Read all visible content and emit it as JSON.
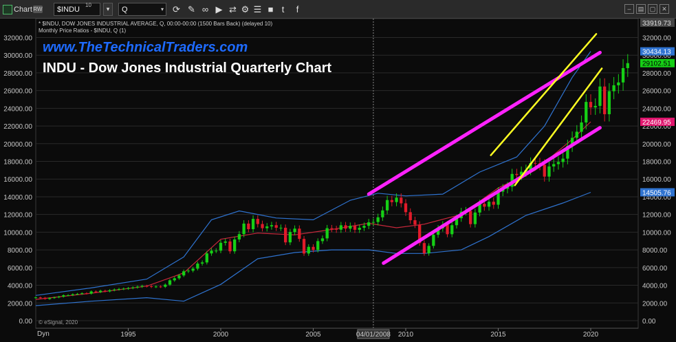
{
  "toolbar": {
    "chart_label": "Chart",
    "chart_badge": "RW",
    "symbol": "$INDU",
    "symbol_sup": "10",
    "interval": "Q",
    "icons": [
      "refresh-icon",
      "draw-icon",
      "link-icon",
      "play-icon",
      "sync-icon",
      "settings-icon",
      "menu-icon",
      "video-icon",
      "twitter-icon",
      "facebook-icon"
    ],
    "window_icons": [
      "minimize-icon",
      "tile-icon",
      "restore-icon",
      "close-icon"
    ]
  },
  "header": {
    "line1": "* $INDU, DOW JONES INDUSTRIAL AVERAGE, Q, 00:00-00:00 (1500 Bars Back) (delayed 10)",
    "line2": "Monthly Price Ratios - $INDU, Q (1)",
    "site": "www.TheTechnicalTraders.com",
    "title": "INDU - Dow Jones Industrial Quarterly Chart"
  },
  "footer": {
    "esignal": "© eSignal, 2020",
    "dyn_label": "Dyn",
    "crosshair_date": "04/01/2008"
  },
  "price_tags": {
    "top": "33919.73",
    "upper_band": "30434.13",
    "last": "29102.51",
    "mid_band": "22469.95",
    "lower_band": "14505.76"
  },
  "chart_data": {
    "type": "candlestick",
    "x_axis_labels": [
      "1995",
      "2000",
      "2005",
      "2010",
      "2015",
      "2020"
    ],
    "y_axis_labels": [
      "0.00",
      "2000.00",
      "4000.00",
      "6000.00",
      "8000.00",
      "10000.00",
      "12000.00",
      "14000.00",
      "16000.00",
      "18000.00",
      "20000.00",
      "22000.00",
      "24000.00",
      "26000.00",
      "28000.00",
      "30000.00",
      "32000.00"
    ],
    "ylim": [
      0,
      33919.73
    ],
    "xlim": [
      1990.0,
      2021.2
    ],
    "grid": "horizontal",
    "colors": {
      "up": "#16d016",
      "down": "#e01b2a",
      "bands": "#2f73d0",
      "mid": "#c8283c",
      "channel_outer": "#ff22ff",
      "channel_inner": "#ffff22"
    },
    "closes": [
      2630,
      2590,
      2450,
      2560,
      2630,
      2710,
      2870,
      2880,
      2980,
      3030,
      3100,
      3060,
      3300,
      3230,
      3380,
      3310,
      3440,
      3520,
      3580,
      3620,
      3680,
      3750,
      3840,
      3920,
      3890,
      3820,
      3860,
      3830,
      4070,
      4560,
      4790,
      5110,
      5580,
      5650,
      5880,
      6450,
      6580,
      7600,
      7910,
      7910,
      8800,
      8950,
      7840,
      9180,
      9780,
      10970,
      10340,
      11500,
      10920,
      10450,
      10650,
      10790,
      10500,
      10500,
      8850,
      10020,
      10400,
      9240,
      7590,
      8340,
      7990,
      8990,
      9300,
      10450,
      10360,
      10280,
      10780,
      10400,
      10720,
      10270,
      10500,
      10720,
      11110,
      11150,
      11680,
      12460,
      13630,
      13400,
      13900,
      13260,
      12260,
      11350,
      10850,
      8770,
      7610,
      8450,
      9710,
      10430,
      10860,
      9770,
      10790,
      11580,
      12320,
      12410,
      10910,
      12220,
      13210,
      12880,
      13440,
      13100,
      14580,
      14910,
      15130,
      16580,
      16460,
      16830,
      17040,
      17820,
      17780,
      17620,
      16280,
      17430,
      17690,
      17930,
      18310,
      19760,
      20660,
      21350,
      22400,
      24720,
      24100,
      24270,
      26460,
      23330,
      25930,
      26600,
      26920,
      28540,
      29100
    ],
    "start_year": 1990.0,
    "bars_per_year": 4,
    "upper_band": [
      [
        1990.0,
        2850
      ],
      [
        1993.0,
        3700
      ],
      [
        1996.0,
        4700
      ],
      [
        1998.0,
        7200
      ],
      [
        1999.5,
        11400
      ],
      [
        2001.0,
        12400
      ],
      [
        2003.0,
        11600
      ],
      [
        2005.0,
        11400
      ],
      [
        2007.0,
        13600
      ],
      [
        2008.5,
        14400
      ],
      [
        2010.0,
        14100
      ],
      [
        2012.0,
        14300
      ],
      [
        2014.0,
        16800
      ],
      [
        2016.0,
        18500
      ],
      [
        2017.5,
        22000
      ],
      [
        2019.0,
        27500
      ],
      [
        2020.0,
        30434
      ]
    ],
    "mid_band": [
      [
        1990.0,
        2400
      ],
      [
        1993.0,
        3100
      ],
      [
        1996.0,
        3900
      ],
      [
        1998.0,
        5400
      ],
      [
        2000.0,
        9200
      ],
      [
        2002.0,
        9900
      ],
      [
        2004.0,
        9700
      ],
      [
        2006.0,
        10300
      ],
      [
        2008.0,
        11000
      ],
      [
        2009.5,
        10500
      ],
      [
        2011.0,
        10900
      ],
      [
        2013.0,
        12000
      ],
      [
        2015.0,
        15000
      ],
      [
        2017.0,
        17000
      ],
      [
        2019.0,
        20500
      ],
      [
        2020.0,
        22470
      ]
    ],
    "lower_band": [
      [
        1990.0,
        1700
      ],
      [
        1993.0,
        2200
      ],
      [
        1996.0,
        2600
      ],
      [
        1998.0,
        2200
      ],
      [
        2000.0,
        4100
      ],
      [
        2002.0,
        7000
      ],
      [
        2004.0,
        7700
      ],
      [
        2006.0,
        8000
      ],
      [
        2008.0,
        8000
      ],
      [
        2009.5,
        7600
      ],
      [
        2011.0,
        7600
      ],
      [
        2013.0,
        8000
      ],
      [
        2014.5,
        9500
      ],
      [
        2016.5,
        11900
      ],
      [
        2018.5,
        13300
      ],
      [
        2020.0,
        14506
      ]
    ],
    "channel_lines": [
      {
        "color": "magenta",
        "points": [
          [
            2008.0,
            14300
          ],
          [
            2020.5,
            30300
          ]
        ]
      },
      {
        "color": "magenta",
        "points": [
          [
            2008.8,
            6500
          ],
          [
            2020.5,
            21800
          ]
        ]
      },
      {
        "color": "yellow",
        "points": [
          [
            2014.6,
            18700
          ],
          [
            2020.3,
            32400
          ]
        ]
      },
      {
        "color": "yellow",
        "points": [
          [
            2015.9,
            15300
          ],
          [
            2020.6,
            28500
          ]
        ]
      }
    ],
    "crosshair_x": 2008.25
  }
}
